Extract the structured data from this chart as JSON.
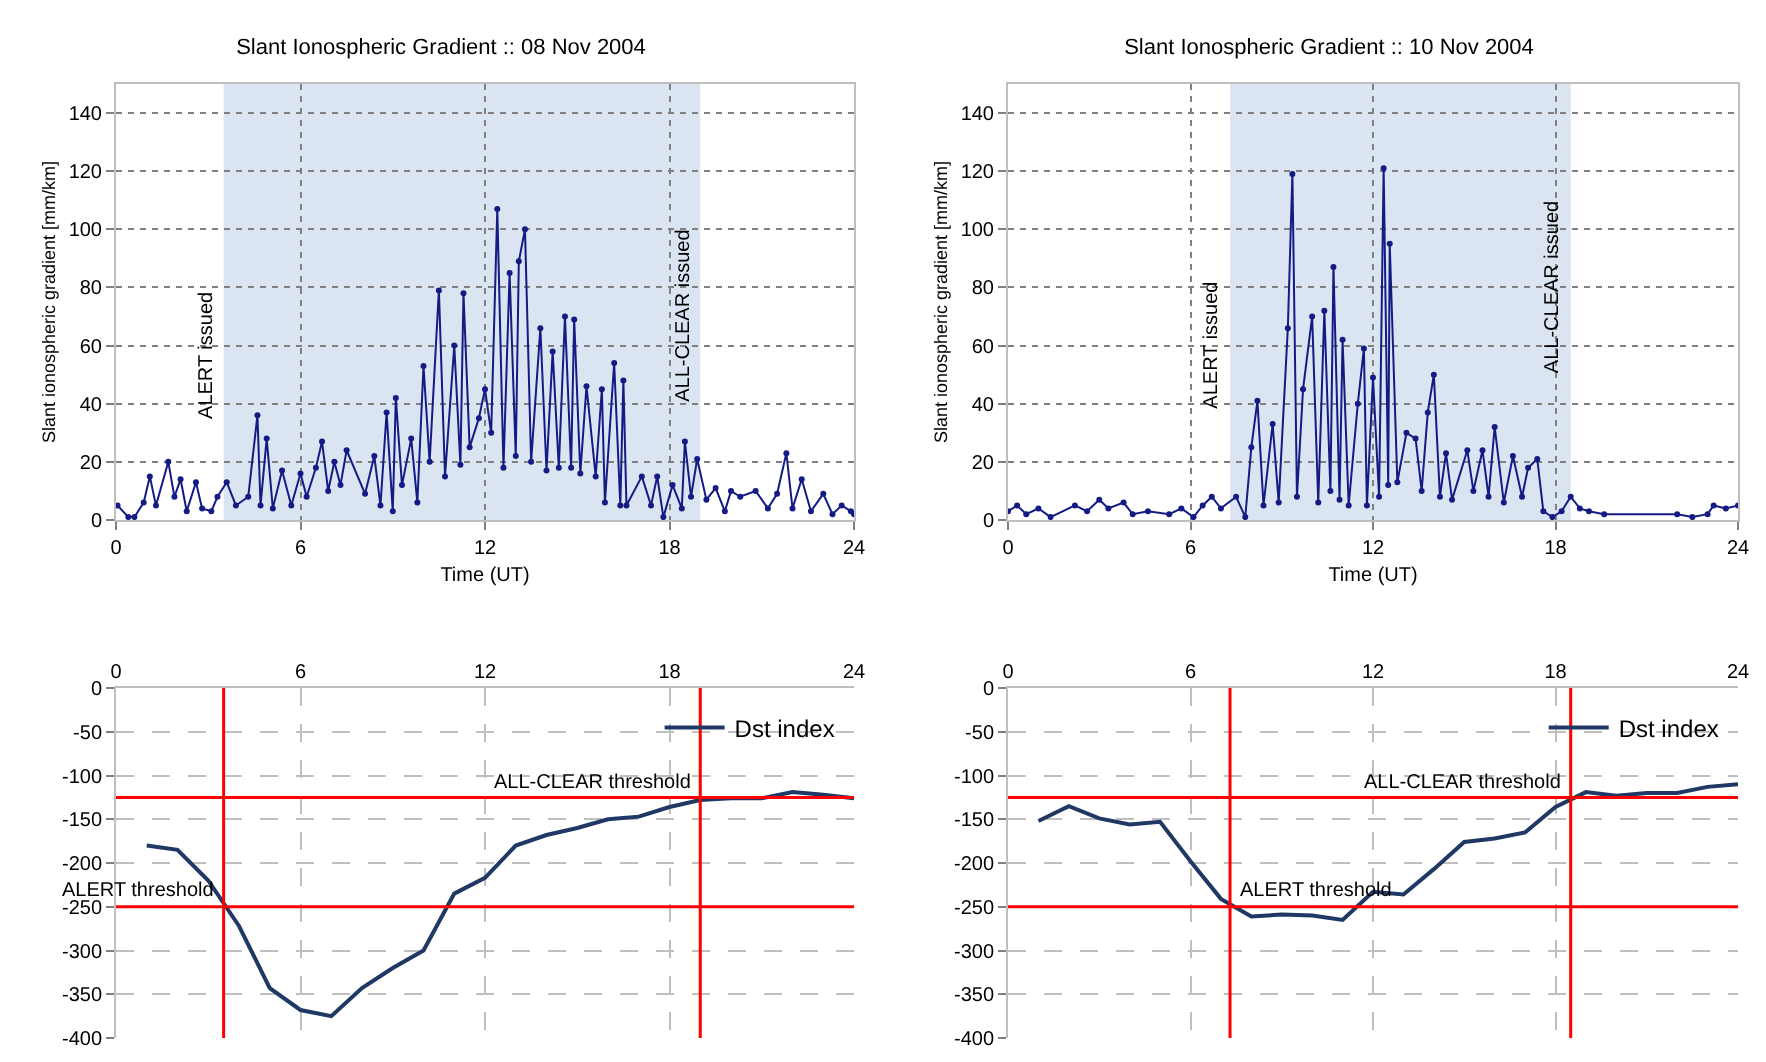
{
  "chart_data": [
    {
      "type": "line",
      "title": "Slant Ionospheric Gradient :: 08 Nov 2004",
      "xlabel": "Time (UT)",
      "ylabel": "Slant ionospheric gradient [mm/km]",
      "marker": "circle",
      "grid": true,
      "xlim": [
        0,
        24
      ],
      "xticks": [
        0,
        6,
        12,
        18,
        24
      ],
      "ylim": [
        0,
        150
      ],
      "yticks": [
        0,
        20,
        40,
        60,
        80,
        100,
        120,
        140
      ],
      "bands": [
        {
          "axis": "x",
          "from": 3.5,
          "to": 19,
          "color": "#dbe5f1"
        }
      ],
      "annotations": [
        {
          "text": "ALERT issued",
          "x": 3.5,
          "y": 57
        },
        {
          "text": "ALL-CLEAR issued",
          "x": 19,
          "y": 70
        }
      ],
      "series": [
        {
          "color": "#141b84",
          "x": [
            0.05,
            0.4,
            0.6,
            0.9,
            1.1,
            1.3,
            1.7,
            1.9,
            2.1,
            2.3,
            2.6,
            2.8,
            3.1,
            3.3,
            3.6,
            3.9,
            4.3,
            4.6,
            4.7,
            4.9,
            5.1,
            5.4,
            5.7,
            6.0,
            6.2,
            6.5,
            6.7,
            6.9,
            7.1,
            7.3,
            7.5,
            8.1,
            8.4,
            8.6,
            8.8,
            9.0,
            9.1,
            9.3,
            9.6,
            9.8,
            10.0,
            10.2,
            10.5,
            10.7,
            11.0,
            11.2,
            11.3,
            11.5,
            11.8,
            12.0,
            12.2,
            12.4,
            12.6,
            12.8,
            13.0,
            13.1,
            13.3,
            13.5,
            13.8,
            14.0,
            14.2,
            14.4,
            14.6,
            14.8,
            14.9,
            15.1,
            15.3,
            15.6,
            15.8,
            15.9,
            16.2,
            16.4,
            16.5,
            16.6,
            17.1,
            17.4,
            17.6,
            17.8,
            18.1,
            18.4,
            18.5,
            18.7,
            18.9,
            19.2,
            19.5,
            19.8,
            20.0,
            20.3,
            20.8,
            21.2,
            21.5,
            21.8,
            22.0,
            22.3,
            22.6,
            23.0,
            23.3,
            23.6,
            23.9,
            24.0
          ],
          "values": [
            5,
            1,
            1,
            6,
            15,
            5,
            20,
            8,
            14,
            3,
            13,
            4,
            3,
            8,
            13,
            5,
            8,
            36,
            5,
            28,
            4,
            17,
            5,
            16,
            8,
            18,
            27,
            10,
            20,
            12,
            24,
            9,
            22,
            5,
            37,
            3,
            42,
            12,
            28,
            6,
            53,
            20,
            79,
            15,
            60,
            19,
            78,
            25,
            35,
            45,
            30,
            107,
            18,
            85,
            22,
            89,
            100,
            20,
            66,
            17,
            58,
            18,
            70,
            18,
            69,
            16,
            46,
            15,
            45,
            6,
            54,
            5,
            48,
            5,
            15,
            5,
            15,
            1,
            12,
            4,
            27,
            8,
            21,
            7,
            11,
            3,
            10,
            8,
            10,
            4,
            9,
            23,
            4,
            14,
            3,
            9,
            2,
            5,
            3,
            2
          ]
        }
      ]
    },
    {
      "type": "line",
      "title": "Slant Ionospheric Gradient :: 10 Nov 2004",
      "xlabel": "Time (UT)",
      "ylabel": "Slant ionospheric gradient [mm/km]",
      "marker": "circle",
      "grid": true,
      "xlim": [
        0,
        24
      ],
      "xticks": [
        0,
        6,
        12,
        18,
        24
      ],
      "ylim": [
        0,
        150
      ],
      "yticks": [
        0,
        20,
        40,
        60,
        80,
        100,
        120,
        140
      ],
      "bands": [
        {
          "axis": "x",
          "from": 7.3,
          "to": 18.5,
          "color": "#dbe5f1"
        }
      ],
      "annotations": [
        {
          "text": "ALERT issued",
          "x": 7.3,
          "y": 60
        },
        {
          "text": "ALL-CLEAR issued",
          "x": 18.5,
          "y": 80
        }
      ],
      "series": [
        {
          "color": "#141b84",
          "x": [
            0.0,
            0.3,
            0.6,
            1.0,
            1.4,
            2.2,
            2.6,
            3.0,
            3.3,
            3.8,
            4.1,
            4.6,
            5.3,
            5.7,
            6.1,
            6.4,
            6.7,
            7.0,
            7.5,
            7.8,
            8.0,
            8.2,
            8.4,
            8.7,
            8.9,
            9.2,
            9.35,
            9.5,
            9.7,
            10.0,
            10.2,
            10.4,
            10.6,
            10.7,
            10.9,
            11.0,
            11.2,
            11.5,
            11.7,
            11.8,
            12.0,
            12.2,
            12.35,
            12.5,
            12.55,
            12.8,
            13.1,
            13.4,
            13.6,
            13.8,
            14.0,
            14.2,
            14.4,
            14.6,
            15.1,
            15.3,
            15.6,
            15.8,
            16.0,
            16.3,
            16.6,
            16.9,
            17.1,
            17.4,
            17.6,
            17.9,
            18.2,
            18.5,
            18.8,
            19.1,
            19.6,
            22.0,
            22.5,
            23.0,
            23.2,
            23.6,
            24.0
          ],
          "values": [
            3,
            5,
            2,
            4,
            1,
            5,
            3,
            7,
            4,
            6,
            2,
            3,
            2,
            4,
            1,
            5,
            8,
            4,
            8,
            1,
            25,
            41,
            5,
            33,
            6,
            66,
            119,
            8,
            45,
            70,
            6,
            72,
            10,
            87,
            7,
            62,
            5,
            40,
            59,
            5,
            49,
            8,
            121,
            12,
            95,
            13,
            30,
            28,
            10,
            37,
            50,
            8,
            23,
            7,
            24,
            10,
            24,
            8,
            32,
            6,
            22,
            8,
            18,
            21,
            3,
            1,
            3,
            8,
            4,
            3,
            2,
            2,
            1,
            2,
            5,
            4,
            5
          ]
        }
      ]
    },
    {
      "type": "line",
      "legend": "top right",
      "grid": true,
      "xlim": [
        0,
        24
      ],
      "xticks": [
        0,
        6,
        12,
        18,
        24
      ],
      "ylim": [
        -400,
        0
      ],
      "yticks": [
        -400,
        -350,
        -300,
        -250,
        -200,
        -150,
        -100,
        -50,
        0
      ],
      "ref_lines": [
        {
          "axis": "x",
          "value": 3.5,
          "color": "#ff0000"
        },
        {
          "axis": "x",
          "value": 19,
          "color": "#ff0000"
        },
        {
          "axis": "y",
          "value": -250,
          "label": "ALERT threshold",
          "color": "#ff0000"
        },
        {
          "axis": "y",
          "value": -125,
          "label": "ALL-CLEAR threshold",
          "color": "#ff0000"
        }
      ],
      "series": [
        {
          "name": "Dst index",
          "color": "#1f3864",
          "x": [
            1,
            2,
            3,
            4,
            5,
            6,
            7,
            8,
            9,
            10,
            11,
            12,
            13,
            14,
            15,
            16,
            17,
            18,
            19,
            20,
            21,
            22,
            23,
            24
          ],
          "values": [
            -180,
            -185,
            -220,
            -272,
            -343,
            -368,
            -375,
            -343,
            -320,
            -300,
            -235,
            -217,
            -180,
            -168,
            -160,
            -150,
            -147,
            -136,
            -128,
            -126,
            -126,
            -119,
            -122,
            -126
          ]
        }
      ]
    },
    {
      "type": "line",
      "legend": "top right",
      "grid": true,
      "xlim": [
        0,
        24
      ],
      "xticks": [
        0,
        6,
        12,
        18,
        24
      ],
      "ylim": [
        -400,
        0
      ],
      "yticks": [
        -400,
        -350,
        -300,
        -250,
        -200,
        -150,
        -100,
        -50,
        0
      ],
      "ref_lines": [
        {
          "axis": "x",
          "value": 7.3,
          "color": "#ff0000"
        },
        {
          "axis": "x",
          "value": 18.5,
          "color": "#ff0000"
        },
        {
          "axis": "y",
          "value": -250,
          "label": "ALERT threshold",
          "color": "#ff0000"
        },
        {
          "axis": "y",
          "value": -125,
          "label": "ALL-CLEAR threshold",
          "color": "#ff0000"
        }
      ],
      "series": [
        {
          "name": "Dst index",
          "color": "#1f3864",
          "x": [
            1,
            2,
            3,
            4,
            5,
            6,
            7,
            8,
            9,
            10,
            11,
            12,
            13,
            14,
            15,
            16,
            17,
            18,
            19,
            20,
            21,
            22,
            23,
            24
          ],
          "values": [
            -152,
            -135,
            -149,
            -156,
            -153,
            -198,
            -241,
            -261,
            -259,
            -260,
            -265,
            -233,
            -236,
            -207,
            -176,
            -172,
            -165,
            -136,
            -119,
            -123,
            -120,
            -120,
            -113,
            -110
          ]
        }
      ]
    }
  ]
}
